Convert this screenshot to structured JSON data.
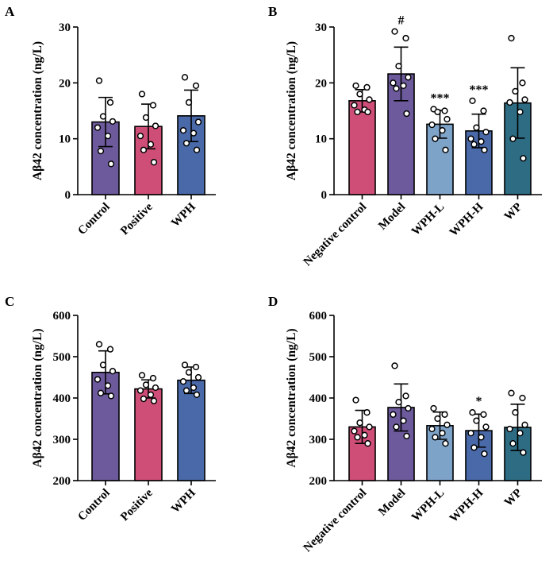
{
  "colors": {
    "control": "#6d5a9c",
    "positive": "#cf4e77",
    "wph": "#4a69a9",
    "wph_l": "#7ea3c9",
    "wph_h": "#4a69a9",
    "wp": "#2e6c83"
  },
  "chart_data": [
    {
      "panel": "A",
      "type": "bar",
      "ylabel": "Aβ42 concentration (ng/L)",
      "ylim": [
        0,
        30
      ],
      "yticks": [
        "0",
        "10",
        "20",
        "30"
      ],
      "categories": [
        "Control",
        "Positive",
        "WPH"
      ],
      "colors": [
        "control",
        "positive",
        "wph"
      ],
      "values": [
        13.0,
        12.2,
        14.1
      ],
      "errors": [
        4.4,
        4.0,
        4.6
      ],
      "points": [
        [
          20.4,
          16.5,
          14.0,
          13.1,
          12.0,
          10.5,
          7.8,
          5.5
        ],
        [
          18.0,
          16.0,
          13.8,
          12.3,
          10.5,
          9.0,
          8.0,
          5.8
        ],
        [
          21.0,
          19.5,
          16.5,
          13.0,
          11.5,
          11.0,
          9.2,
          8.0
        ]
      ],
      "annotations": [
        "",
        "",
        ""
      ]
    },
    {
      "panel": "B",
      "type": "bar",
      "ylabel": "Aβ42 concentration (ng/L)",
      "ylim": [
        0,
        30
      ],
      "yticks": [
        "0",
        "10",
        "20",
        "30"
      ],
      "categories": [
        "Negative control",
        "Model",
        "WPH-L",
        "WPH-H",
        "WP"
      ],
      "colors": [
        "positive",
        "control",
        "wph_l",
        "wph_h",
        "wp"
      ],
      "values": [
        16.8,
        21.6,
        12.6,
        11.4,
        16.4
      ],
      "errors": [
        2.0,
        4.8,
        2.5,
        3.0,
        6.3
      ],
      "points": [
        [
          19.5,
          19.2,
          18.0,
          17.0,
          16.0,
          15.2,
          14.8,
          14.8
        ],
        [
          29.2,
          28.0,
          23.0,
          21.0,
          20.0,
          19.5,
          19.0,
          14.5
        ],
        [
          15.3,
          15.0,
          14.8,
          13.5,
          12.5,
          11.5,
          10.0,
          8.0
        ],
        [
          16.8,
          15.0,
          12.0,
          11.2,
          10.0,
          9.5,
          9.0,
          8.0
        ],
        [
          28.0,
          20.0,
          18.5,
          17.0,
          16.5,
          14.8,
          10.0,
          6.5
        ]
      ],
      "annotations": [
        "",
        "#",
        "***",
        "***",
        ""
      ]
    },
    {
      "panel": "C",
      "type": "bar",
      "ylabel": "Aβ42 concentration (ng/L)",
      "ylim": [
        200,
        600
      ],
      "yticks": [
        "200",
        "300",
        "400",
        "500",
        "600"
      ],
      "categories": [
        "Control",
        "Positive",
        "WPH"
      ],
      "colors": [
        "control",
        "positive",
        "wph"
      ],
      "values": [
        462,
        422,
        443
      ],
      "errors": [
        52,
        22,
        32
      ],
      "points": [
        [
          530,
          518,
          480,
          465,
          445,
          430,
          412,
          405
        ],
        [
          455,
          448,
          432,
          425,
          418,
          408,
          398,
          393
        ],
        [
          480,
          475,
          462,
          450,
          440,
          425,
          418,
          408
        ]
      ],
      "annotations": [
        "",
        "",
        ""
      ]
    },
    {
      "panel": "D",
      "type": "bar",
      "ylabel": "Aβ42 concentration (ng/L)",
      "ylim": [
        200,
        600
      ],
      "yticks": [
        "200",
        "300",
        "400",
        "500",
        "600"
      ],
      "categories": [
        "Negative control",
        "Model",
        "WPH-L",
        "WPH-H",
        "WP"
      ],
      "colors": [
        "positive",
        "control",
        "wph_l",
        "wph_h",
        "wp"
      ],
      "values": [
        330,
        377,
        333,
        321,
        329
      ],
      "errors": [
        40,
        57,
        33,
        40,
        56
      ],
      "points": [
        [
          395,
          365,
          340,
          330,
          320,
          310,
          305,
          290
        ],
        [
          478,
          405,
          390,
          375,
          360,
          345,
          330,
          308
        ],
        [
          375,
          360,
          350,
          335,
          325,
          315,
          305,
          290
        ],
        [
          365,
          360,
          345,
          330,
          315,
          305,
          280,
          265
        ],
        [
          412,
          400,
          365,
          335,
          325,
          315,
          290,
          268
        ]
      ],
      "annotations": [
        "",
        "",
        "",
        "*",
        ""
      ]
    }
  ]
}
